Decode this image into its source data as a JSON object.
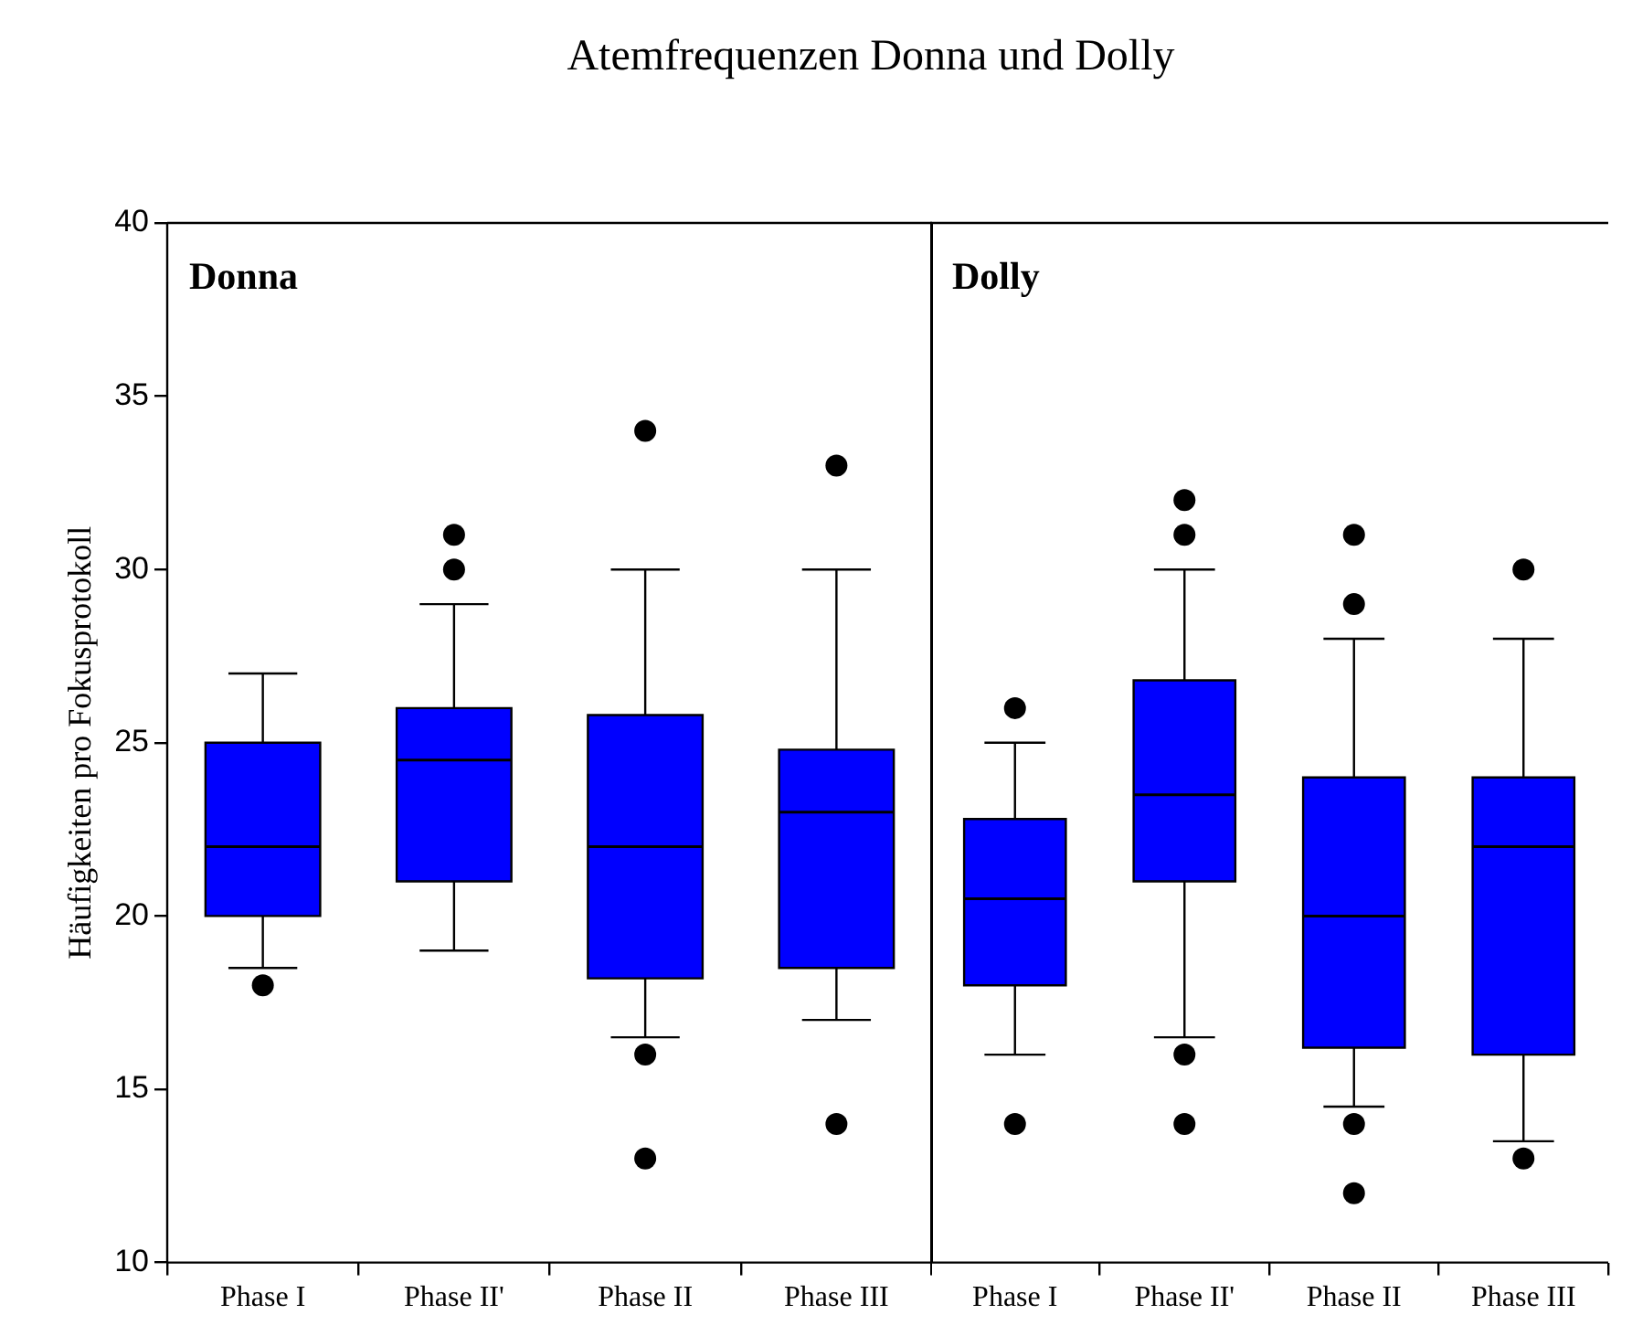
{
  "chart_data": [
    {
      "type": "box",
      "title": "Atemfrequenzen Donna und Dolly",
      "ylabel": "Häufigkeiten pro Fokusprotokoll",
      "annotations": [
        "Donna"
      ],
      "categories": [
        "Phase I",
        "Phase II'",
        "Phase II",
        "Phase III"
      ],
      "color": "#0000ff",
      "marker": "circle",
      "ylim": [
        10,
        40
      ],
      "yticks": [
        10,
        15,
        20,
        25,
        30,
        35,
        40
      ],
      "boxes": [
        {
          "low": 18.5,
          "q1": 20,
          "median": 22,
          "q3": 25,
          "high": 27,
          "outliers": [
            18
          ]
        },
        {
          "low": 19,
          "q1": 21,
          "median": 24.5,
          "q3": 26,
          "high": 29,
          "outliers": [
            30,
            31
          ]
        },
        {
          "low": 16.5,
          "q1": 18.2,
          "median": 22,
          "q3": 25.8,
          "high": 30,
          "outliers": [
            16,
            13,
            34
          ]
        },
        {
          "low": 17,
          "q1": 18.5,
          "median": 23,
          "q3": 24.8,
          "high": 30,
          "outliers": [
            14,
            33
          ]
        }
      ]
    },
    {
      "type": "box",
      "annotations": [
        "Dolly"
      ],
      "categories": [
        "Phase I",
        "Phase II'",
        "Phase II",
        "Phase III"
      ],
      "color": "#0000ff",
      "marker": "circle",
      "ylim": [
        10,
        40
      ],
      "yticks": [
        10,
        15,
        20,
        25,
        30,
        35,
        40
      ],
      "tick_labels": "x",
      "boxes": [
        {
          "low": 16,
          "q1": 18,
          "median": 20.5,
          "q3": 22.8,
          "high": 25,
          "outliers": [
            26,
            14
          ]
        },
        {
          "low": 16.5,
          "q1": 21,
          "median": 23.5,
          "q3": 26.8,
          "high": 30,
          "outliers": [
            32,
            31,
            16,
            14
          ]
        },
        {
          "low": 14.5,
          "q1": 16.2,
          "median": 20,
          "q3": 24,
          "high": 28,
          "outliers": [
            31,
            29,
            14,
            12
          ]
        },
        {
          "low": 13.5,
          "q1": 16,
          "median": 22,
          "q3": 24,
          "high": 28,
          "outliers": [
            30,
            13
          ]
        }
      ]
    }
  ]
}
